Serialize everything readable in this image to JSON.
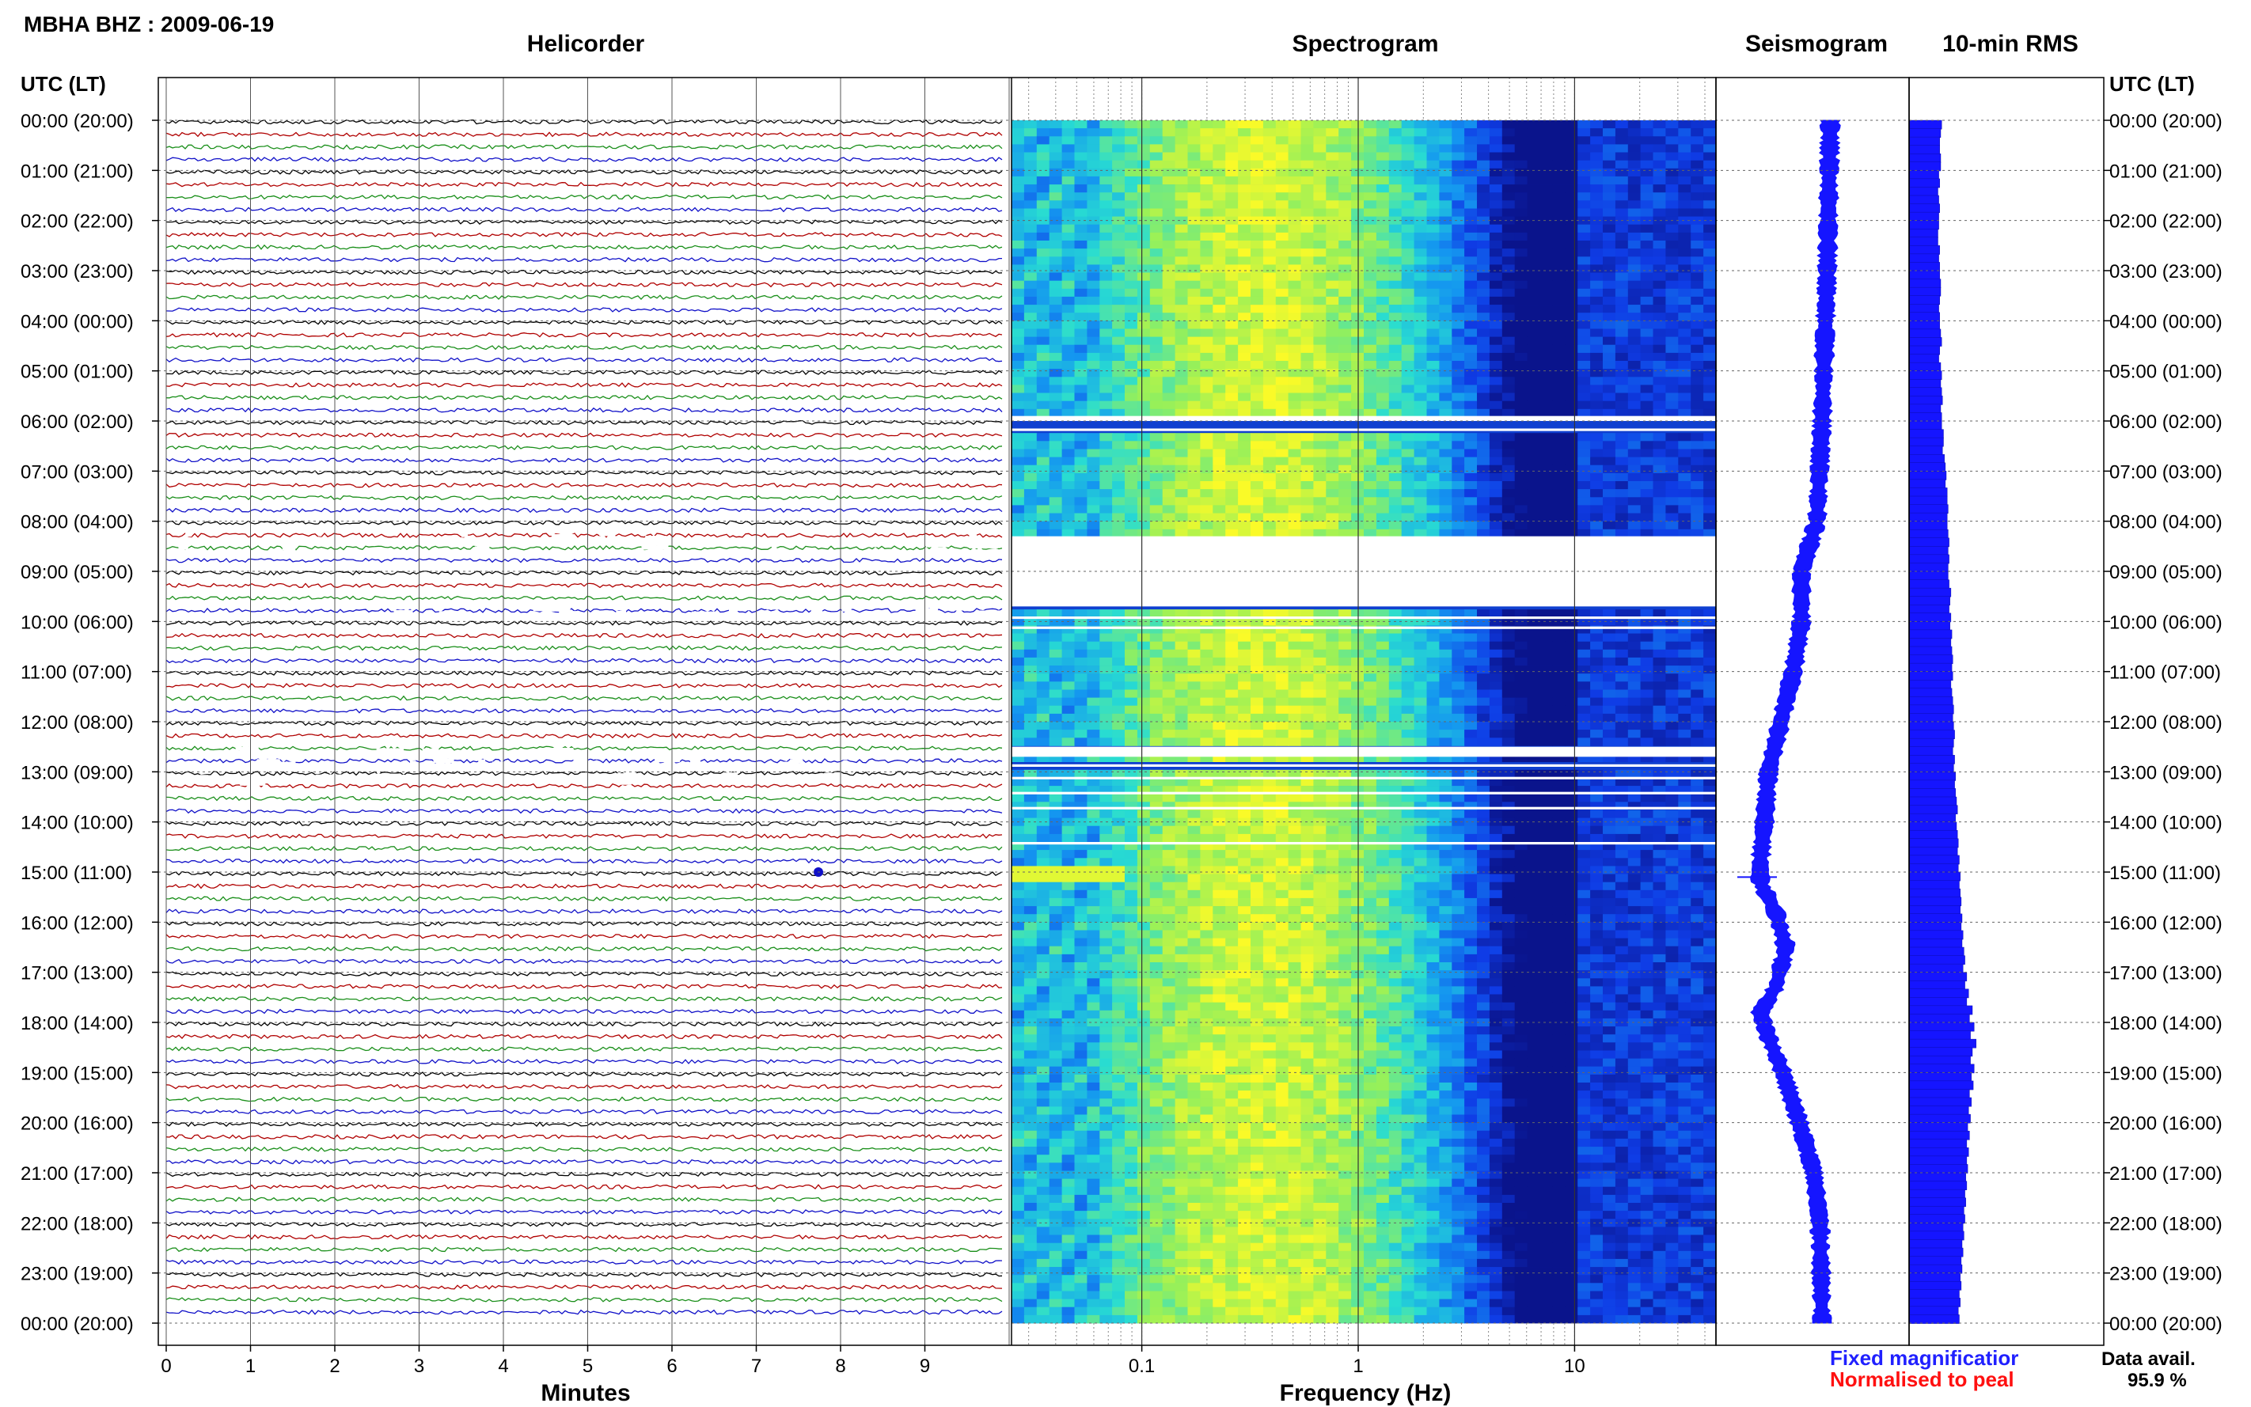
{
  "header": {
    "station": "MBHA BHZ : 2009-06-19"
  },
  "panels": {
    "helicorder": "Helicorder",
    "spectrogram": "Spectrogram",
    "seismogram": "Seismogram",
    "rms": "10-min RMS"
  },
  "axes": {
    "time_header_left": "UTC (LT)",
    "time_header_right": "UTC (LT)",
    "minutes_label": "Minutes",
    "frequency_label": "Frequency (Hz)",
    "time_ticks": [
      "00:00 (20:00)",
      "01:00 (21:00)",
      "02:00 (22:00)",
      "03:00 (23:00)",
      "04:00 (00:00)",
      "05:00 (01:00)",
      "06:00 (02:00)",
      "07:00 (03:00)",
      "08:00 (04:00)",
      "09:00 (05:00)",
      "10:00 (06:00)",
      "11:00 (07:00)",
      "12:00 (08:00)",
      "13:00 (09:00)",
      "14:00 (10:00)",
      "15:00 (11:00)",
      "16:00 (12:00)",
      "17:00 (13:00)",
      "18:00 (14:00)",
      "19:00 (15:00)",
      "20:00 (16:00)",
      "21:00 (17:00)",
      "22:00 (18:00)",
      "23:00 (19:00)",
      "00:00 (20:00)"
    ],
    "minute_ticks": [
      "0",
      "1",
      "2",
      "3",
      "4",
      "5",
      "6",
      "7",
      "8",
      "9"
    ],
    "freq_ticks": [
      "0.1",
      "1",
      "10"
    ]
  },
  "legend": {
    "fixed": "Fixed magnificatior",
    "fixed_color": "#2020ff",
    "normalised": "Normalised to peal",
    "normalised_color": "#ff1010"
  },
  "data_avail": {
    "label": "Data avail.",
    "value": "95.9 %"
  },
  "chart_data": {
    "type": "heatmap",
    "panels": [
      "Helicorder",
      "Spectrogram",
      "Seismogram",
      "10-min RMS"
    ],
    "time_range_hours": [
      0,
      24
    ],
    "helicorder_colors": [
      "#000000",
      "#b00000",
      "#1a8f1a",
      "#1010c8"
    ],
    "helicorder_gaps_hours": [
      [
        8.2,
        8.5
      ],
      [
        9.6,
        9.8
      ],
      [
        12.5,
        12.8
      ],
      [
        13.0,
        13.2
      ]
    ],
    "spectrogram_xlim": [
      0.025,
      45
    ],
    "spectrogram_xscale": "log",
    "spectrogram_gaps_hours": [
      [
        5.9,
        6.0
      ],
      [
        6.15,
        6.2
      ],
      [
        8.3,
        9.7
      ],
      [
        9.9,
        9.95
      ],
      [
        10.1,
        10.15
      ],
      [
        12.5,
        12.7
      ],
      [
        12.85,
        12.9
      ],
      [
        13.1,
        13.15
      ],
      [
        13.4,
        13.45
      ],
      [
        13.7,
        13.75
      ],
      [
        14.4,
        14.45
      ]
    ],
    "seismogram_color": "#1515ff",
    "seismogram_drift": [
      [
        0,
        0.88
      ],
      [
        3,
        0.85
      ],
      [
        6,
        0.8
      ],
      [
        8,
        0.75
      ],
      [
        9,
        0.6
      ],
      [
        10,
        0.6
      ],
      [
        11,
        0.52
      ],
      [
        12,
        0.4
      ],
      [
        13,
        0.28
      ],
      [
        14,
        0.24
      ],
      [
        14.8,
        0.2
      ],
      [
        15.2,
        0.2
      ],
      [
        15.8,
        0.35
      ],
      [
        16.5,
        0.45
      ],
      [
        17.3,
        0.35
      ],
      [
        17.8,
        0.2
      ],
      [
        18.3,
        0.28
      ],
      [
        19,
        0.42
      ],
      [
        20,
        0.58
      ],
      [
        21,
        0.72
      ],
      [
        22,
        0.78
      ],
      [
        24,
        0.8
      ]
    ],
    "rms_color": "#1515ff",
    "rms_values_10min": [
      0.35,
      0.34,
      0.33,
      0.33,
      0.34,
      0.34,
      0.32,
      0.33,
      0.31,
      0.32,
      0.33,
      0.32,
      0.32,
      0.31,
      0.31,
      0.33,
      0.32,
      0.33,
      0.33,
      0.34,
      0.34,
      0.33,
      0.32,
      0.33,
      0.33,
      0.34,
      0.35,
      0.33,
      0.32,
      0.34,
      0.35,
      0.34,
      0.35,
      0.36,
      0.34,
      0.35,
      0.35,
      0.37,
      0.37,
      0.36,
      0.38,
      0.39,
      0.4,
      0.39,
      0.41,
      0.41,
      0.42,
      0.41,
      0.41,
      0.42,
      0.43,
      0.42,
      0.43,
      0.42,
      0.42,
      0.43,
      0.45,
      0.44,
      0.43,
      0.45,
      0.44,
      0.46,
      0.45,
      0.46,
      0.47,
      0.46,
      0.47,
      0.45,
      0.46,
      0.47,
      0.48,
      0.47,
      0.48,
      0.49,
      0.48,
      0.47,
      0.49,
      0.48,
      0.5,
      0.49,
      0.5,
      0.51,
      0.52,
      0.5,
      0.51,
      0.52,
      0.53,
      0.52,
      0.54,
      0.53,
      0.55,
      0.54,
      0.55,
      0.56,
      0.55,
      0.57,
      0.56,
      0.58,
      0.57,
      0.59,
      0.6,
      0.58,
      0.62,
      0.6,
      0.64,
      0.62,
      0.68,
      0.65,
      0.7,
      0.66,
      0.72,
      0.68,
      0.66,
      0.7,
      0.67,
      0.69,
      0.65,
      0.67,
      0.64,
      0.66,
      0.63,
      0.65,
      0.62,
      0.64,
      0.62,
      0.63,
      0.61,
      0.62,
      0.6,
      0.61,
      0.59,
      0.6,
      0.58,
      0.59,
      0.57,
      0.58,
      0.56,
      0.57,
      0.55,
      0.56,
      0.54,
      0.55,
      0.53,
      0.54
    ]
  }
}
